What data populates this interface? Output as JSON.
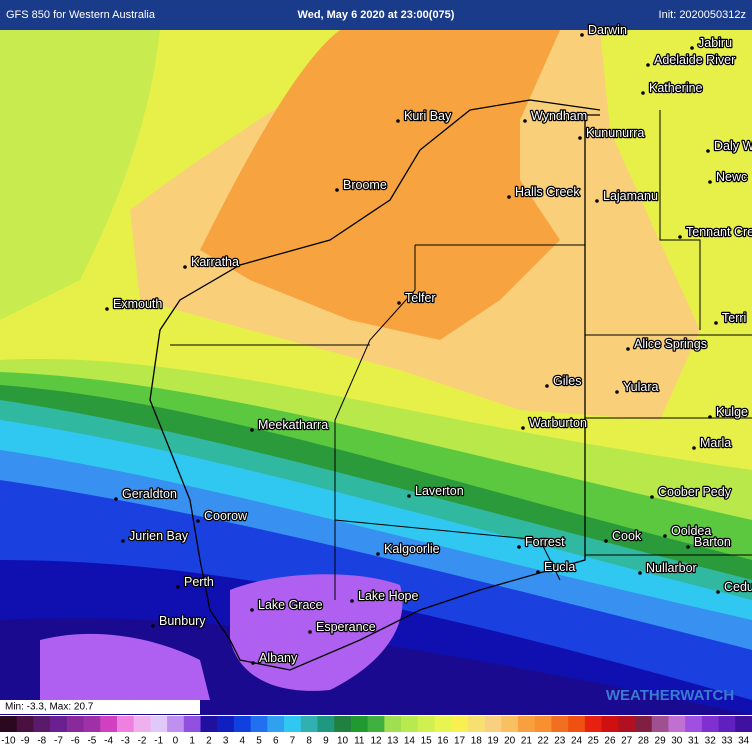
{
  "header": {
    "left": "GFS 850 for Western Australia",
    "center": "Wed, May 6 2020 at 23:00(075)",
    "right": "Init: 2020050312z"
  },
  "towns": [
    "Darwin",
    "Jabiru",
    "Adelaide River",
    "Katherine",
    "Kuri Bay",
    "Wyndham",
    "Kununurra",
    "Daly W",
    "Newc",
    "Broome",
    "Halls Creek",
    "Lajamanu",
    "Tennant Cred",
    "Karratha",
    "Telfer",
    "Exmouth",
    "Terri",
    "Alice Springs",
    "Giles",
    "Yulara",
    "Kulge",
    "Meekatharra",
    "Warburton",
    "Marla",
    "Laverton",
    "Coober Pedy",
    "Geraldton",
    "Coorow",
    "Jurien Bay",
    "Ooldea",
    "Cook",
    "Barton",
    "Forrest",
    "Kalgoorlie",
    "Eucla",
    "Nullarbor",
    "Perth",
    "Ceduna",
    "Lake Grace",
    "Lake Hope",
    "Bunbury",
    "Esperance",
    "Albany"
  ],
  "minmax": "Min: -3.3, Max: 20.7",
  "watermark": "WEATHERWATCH",
  "colorbar": {
    "ticks": [
      -10,
      -9,
      -8,
      -7,
      -6,
      -5,
      -4,
      -3,
      -2,
      -1,
      0,
      1,
      2,
      3,
      4,
      5,
      6,
      7,
      8,
      9,
      10,
      11,
      12,
      13,
      14,
      15,
      16,
      17,
      18,
      19,
      20,
      21,
      22,
      23,
      24,
      25,
      26,
      27,
      28,
      29,
      30,
      31,
      32,
      33,
      34
    ],
    "colors": [
      "#2a0820",
      "#4a1040",
      "#5a1a6a",
      "#6a2090",
      "#8a2a9a",
      "#a030a8",
      "#d040c0",
      "#f080e0",
      "#f0b0f0",
      "#e0c8f8",
      "#c090f0",
      "#9050e0",
      "#2010a0",
      "#1020c0",
      "#1040e0",
      "#2070f0",
      "#30a0f0",
      "#30c8f0",
      "#30b0b0",
      "#209880",
      "#208040",
      "#209a30",
      "#40b040",
      "#a0e050",
      "#b8ea50",
      "#d0f050",
      "#e8f450",
      "#f8f050",
      "#f8e070",
      "#f8d080",
      "#f8c060",
      "#f8a040",
      "#f89030",
      "#f07020",
      "#f05010",
      "#e82010",
      "#d01010",
      "#b01020",
      "#802040",
      "#a05090",
      "#c070d0",
      "#a050e0",
      "#8030d0",
      "#6020c0",
      "#4010a0"
    ]
  }
}
